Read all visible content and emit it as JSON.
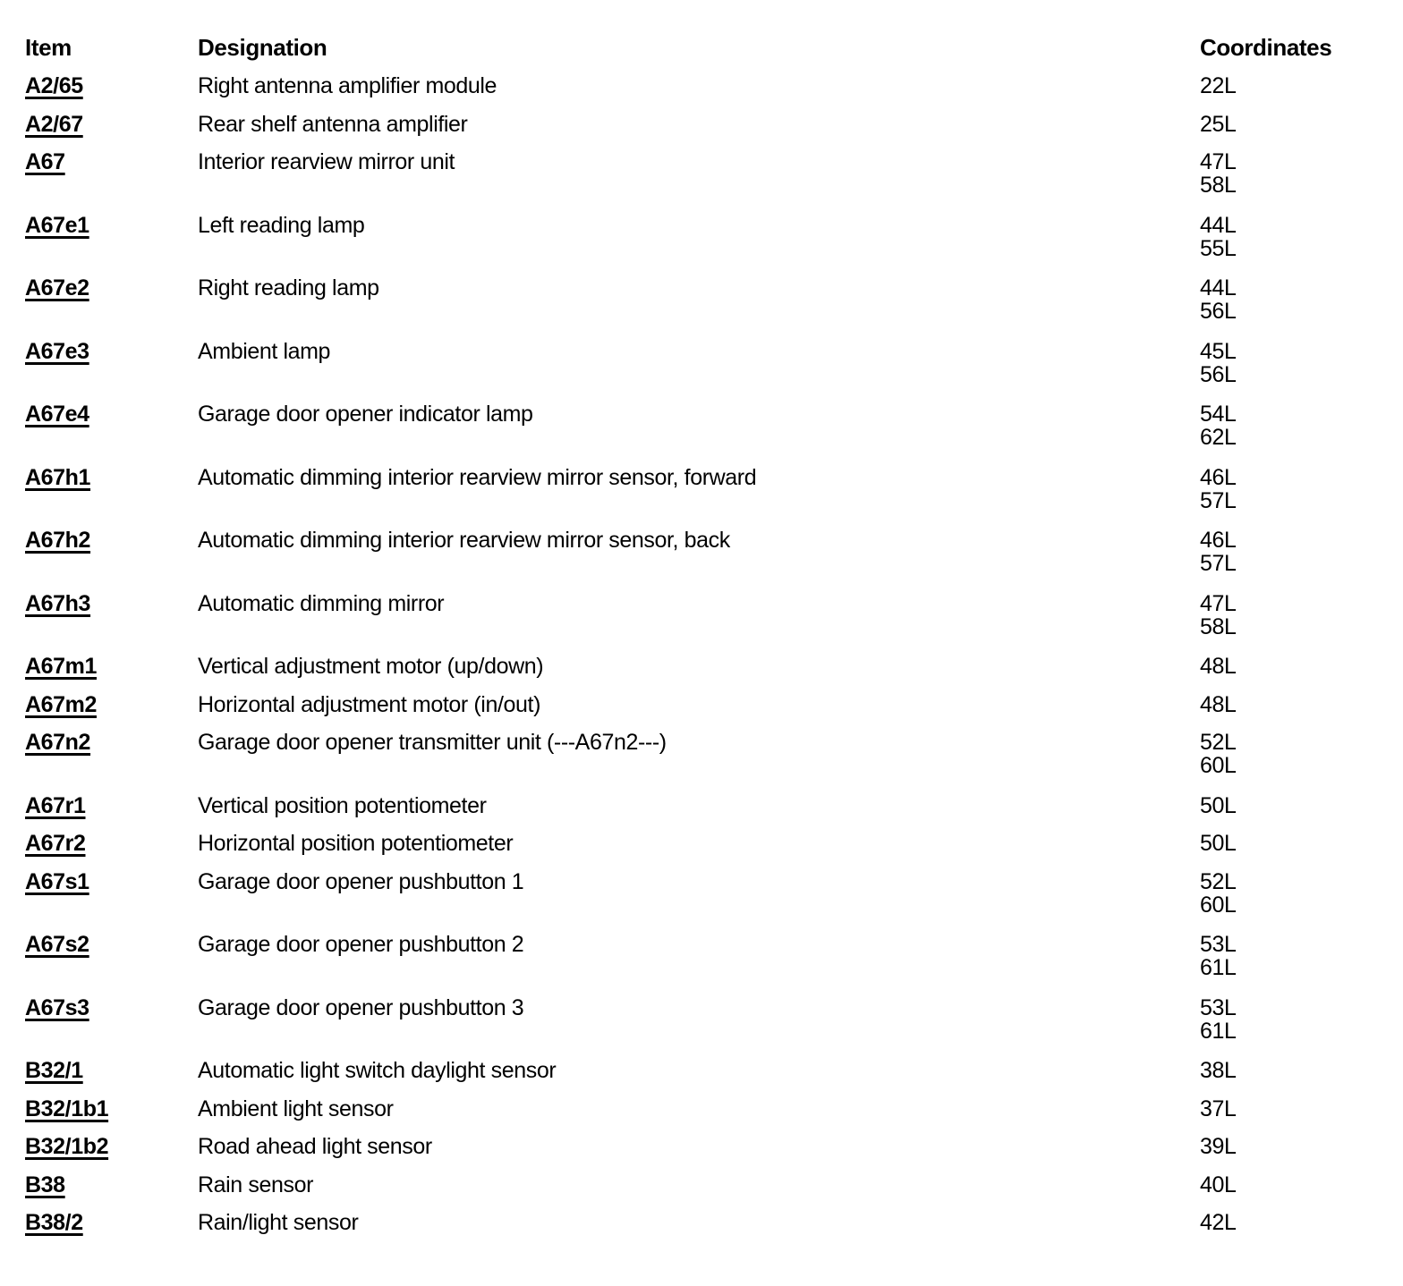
{
  "colors": {
    "text": "#000000",
    "background": "#ffffff"
  },
  "table": {
    "headers": {
      "item": "Item",
      "designation": "Designation",
      "coordinates": "Coordinates"
    },
    "rows": [
      {
        "item": "A2/65",
        "designation": "Right antenna amplifier module",
        "coordinates": [
          "22L"
        ]
      },
      {
        "item": "A2/67",
        "designation": "Rear shelf antenna amplifier",
        "coordinates": [
          "25L"
        ]
      },
      {
        "item": "A67",
        "designation": "Interior rearview mirror unit",
        "coordinates": [
          "47L",
          "58L"
        ]
      },
      {
        "item": "A67e1",
        "designation": "Left reading lamp",
        "coordinates": [
          "44L",
          "55L"
        ]
      },
      {
        "item": "A67e2",
        "designation": "Right reading lamp",
        "coordinates": [
          "44L",
          "56L"
        ]
      },
      {
        "item": "A67e3",
        "designation": "Ambient lamp",
        "coordinates": [
          "45L",
          "56L"
        ]
      },
      {
        "item": "A67e4",
        "designation": "Garage door opener indicator lamp",
        "coordinates": [
          "54L",
          "62L"
        ]
      },
      {
        "item": "A67h1",
        "designation": "Automatic dimming interior rearview mirror sensor, forward",
        "coordinates": [
          "46L",
          "57L"
        ]
      },
      {
        "item": "A67h2",
        "designation": "Automatic dimming interior rearview mirror sensor, back",
        "coordinates": [
          "46L",
          "57L"
        ]
      },
      {
        "item": "A67h3",
        "designation": "Automatic dimming mirror",
        "coordinates": [
          "47L",
          "58L"
        ]
      },
      {
        "item": "A67m1",
        "designation": "Vertical adjustment motor (up/down)",
        "coordinates": [
          "48L"
        ]
      },
      {
        "item": "A67m2",
        "designation": "Horizontal adjustment motor (in/out)",
        "coordinates": [
          "48L"
        ]
      },
      {
        "item": "A67n2",
        "designation": "Garage door opener transmitter unit (---A67n2---)",
        "coordinates": [
          "52L",
          "60L"
        ]
      },
      {
        "item": "A67r1",
        "designation": "Vertical position potentiometer",
        "coordinates": [
          "50L"
        ]
      },
      {
        "item": "A67r2",
        "designation": "Horizontal position potentiometer",
        "coordinates": [
          "50L"
        ]
      },
      {
        "item": "A67s1",
        "designation": "Garage door opener pushbutton 1",
        "coordinates": [
          "52L",
          "60L"
        ]
      },
      {
        "item": "A67s2",
        "designation": "Garage door opener pushbutton 2",
        "coordinates": [
          "53L",
          "61L"
        ]
      },
      {
        "item": "A67s3",
        "designation": "Garage door opener pushbutton 3",
        "coordinates": [
          "53L",
          "61L"
        ]
      },
      {
        "item": "B32/1",
        "designation": "Automatic light switch daylight sensor",
        "coordinates": [
          "38L"
        ]
      },
      {
        "item": "B32/1b1",
        "designation": "Ambient light sensor",
        "coordinates": [
          "37L"
        ]
      },
      {
        "item": "B32/1b2",
        "designation": "Road ahead light sensor",
        "coordinates": [
          "39L"
        ]
      },
      {
        "item": "B38",
        "designation": "Rain sensor",
        "coordinates": [
          "40L"
        ]
      },
      {
        "item": "B38/2",
        "designation": "Rain/light sensor",
        "coordinates": [
          "42L"
        ]
      }
    ]
  }
}
